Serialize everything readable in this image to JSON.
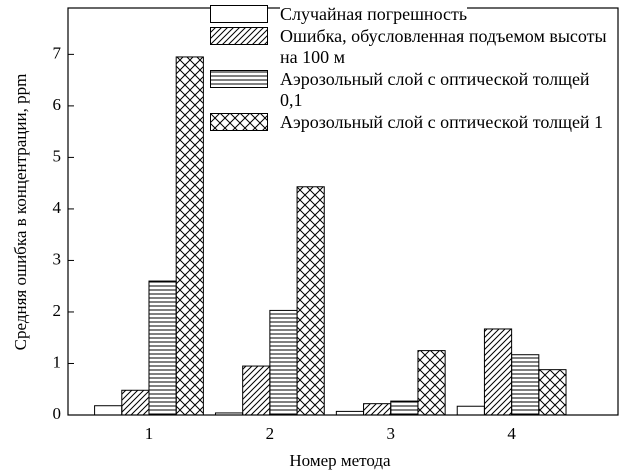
{
  "chart_data": {
    "type": "bar",
    "x_label": "Номер метода",
    "y_label": "Средняя ошибка в концентрации, ppm",
    "x": [
      1,
      2,
      3,
      4
    ],
    "xlim": [
      0.33,
      4.88
    ],
    "xticks": [
      1,
      2,
      3,
      4
    ],
    "ylim": [
      0,
      7.9
    ],
    "yticks": [
      0,
      1,
      2,
      3,
      4,
      5,
      6,
      7
    ],
    "series": [
      {
        "name": "Случайная погрешность",
        "pattern": "none",
        "color": "#000000",
        "values": [
          0.18,
          0.04,
          0.07,
          0.17
        ]
      },
      {
        "name": "Ошибка, обусловленная подъемом высоты на 100 м",
        "pattern": "diagonal",
        "color": "#000000",
        "values": [
          0.48,
          0.95,
          0.22,
          1.67
        ]
      },
      {
        "name": "Аэрозольный слой с оптической толщей 0,1",
        "pattern": "horizontal",
        "color": "#000000",
        "values": [
          2.6,
          2.03,
          0.27,
          1.17
        ]
      },
      {
        "name": "Аэрозольный слой с оптической толщей 1",
        "pattern": "crosshatch",
        "color": "#000000",
        "values": [
          6.95,
          4.43,
          1.25,
          0.88
        ]
      }
    ]
  }
}
